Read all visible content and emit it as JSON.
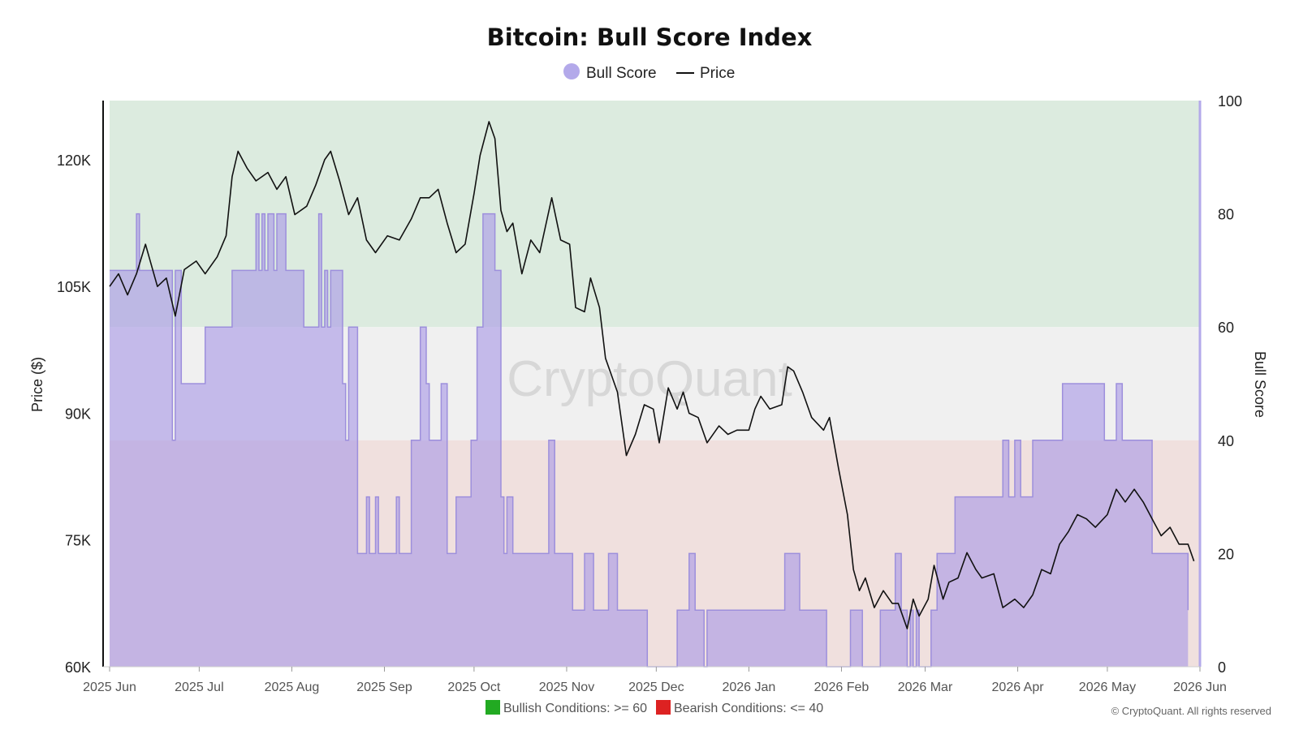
{
  "watermark": "CryptoQuant",
  "copyright": "© CryptoQuant. All rights reserved",
  "footnote": {
    "bullish": "Bullish Conditions: >= 60",
    "bearish": "Bearish Conditions: <= 40",
    "bullish_color": "#22aa22",
    "bearish_color": "#dd2222"
  },
  "chart_data": {
    "type": "line",
    "title": "Bitcoin: Bull Score Index",
    "legend": {
      "placement": "top-center",
      "items": [
        {
          "name": "Bull Score",
          "symbol": "circle"
        },
        {
          "name": "Price",
          "symbol": "line"
        }
      ]
    },
    "ylabel_left": "Price ($)",
    "ylabel_right": "Bull Score",
    "ylim_left": [
      60000,
      127000
    ],
    "ylim_right": [
      0,
      100
    ],
    "yticks_left": [
      60000,
      75000,
      90000,
      105000,
      120000
    ],
    "ytick_labels_left": [
      "60K",
      "75K",
      "90K",
      "105K",
      "120K"
    ],
    "yticks_right": [
      0,
      20,
      40,
      60,
      80,
      100
    ],
    "x_range": [
      "2025-06-01",
      "2026-06-01"
    ],
    "xticks": [
      "2025-06-01",
      "2025-07-01",
      "2025-08-01",
      "2025-09-01",
      "2025-10-01",
      "2025-11-01",
      "2025-12-01",
      "2026-01-01",
      "2026-02-01",
      "2026-03-01",
      "2026-04-01",
      "2026-05-01",
      "2026-06-01"
    ],
    "xtick_labels": [
      "2025 Jun",
      "2025 Jul",
      "2025 Aug",
      "2025 Sep",
      "2025 Oct",
      "2025 Nov",
      "2025 Dec",
      "2026 Jan",
      "2026 Feb",
      "2026 Mar",
      "2026 Apr",
      "2026 May",
      "2026 Jun"
    ],
    "zones": [
      {
        "name": "bullish",
        "from": 60,
        "to": 100,
        "color": "#dcebdf"
      },
      {
        "name": "neutral",
        "from": 40,
        "to": 60,
        "color": "#f0f0f0"
      },
      {
        "name": "bearish",
        "from": 0,
        "to": 40,
        "color": "#f0e0de"
      }
    ],
    "colors": {
      "bull_fill": "#a99ae6",
      "bull_line": "#9d8fdc",
      "price_line": "#111111",
      "right_axis": "#b3a9ea"
    },
    "grid": false,
    "series": [
      {
        "name": "Bull Score",
        "axis": "right",
        "kind": "step-area",
        "points": [
          [
            "2025-06-01",
            70
          ],
          [
            "2025-06-10",
            80
          ],
          [
            "2025-06-11",
            70
          ],
          [
            "2025-06-21",
            70
          ],
          [
            "2025-06-22",
            40
          ],
          [
            "2025-06-23",
            70
          ],
          [
            "2025-06-25",
            50
          ],
          [
            "2025-07-03",
            60
          ],
          [
            "2025-07-12",
            70
          ],
          [
            "2025-07-20",
            80
          ],
          [
            "2025-07-21",
            70
          ],
          [
            "2025-07-22",
            80
          ],
          [
            "2025-07-23",
            70
          ],
          [
            "2025-07-24",
            80
          ],
          [
            "2025-07-26",
            70
          ],
          [
            "2025-07-27",
            80
          ],
          [
            "2025-07-30",
            70
          ],
          [
            "2025-08-05",
            60
          ],
          [
            "2025-08-10",
            80
          ],
          [
            "2025-08-11",
            60
          ],
          [
            "2025-08-12",
            70
          ],
          [
            "2025-08-13",
            60
          ],
          [
            "2025-08-14",
            70
          ],
          [
            "2025-08-18",
            50
          ],
          [
            "2025-08-19",
            40
          ],
          [
            "2025-08-20",
            60
          ],
          [
            "2025-08-23",
            20
          ],
          [
            "2025-08-26",
            30
          ],
          [
            "2025-08-27",
            20
          ],
          [
            "2025-08-29",
            30
          ],
          [
            "2025-08-30",
            20
          ],
          [
            "2025-09-05",
            30
          ],
          [
            "2025-09-06",
            20
          ],
          [
            "2025-09-10",
            40
          ],
          [
            "2025-09-13",
            60
          ],
          [
            "2025-09-15",
            50
          ],
          [
            "2025-09-16",
            40
          ],
          [
            "2025-09-20",
            50
          ],
          [
            "2025-09-22",
            20
          ],
          [
            "2025-09-25",
            30
          ],
          [
            "2025-09-30",
            40
          ],
          [
            "2025-10-02",
            60
          ],
          [
            "2025-10-04",
            80
          ],
          [
            "2025-10-08",
            70
          ],
          [
            "2025-10-10",
            30
          ],
          [
            "2025-10-11",
            20
          ],
          [
            "2025-10-12",
            30
          ],
          [
            "2025-10-14",
            20
          ],
          [
            "2025-10-26",
            40
          ],
          [
            "2025-10-28",
            20
          ],
          [
            "2025-11-03",
            10
          ],
          [
            "2025-11-07",
            20
          ],
          [
            "2025-11-10",
            10
          ],
          [
            "2025-11-15",
            20
          ],
          [
            "2025-11-18",
            10
          ],
          [
            "2025-11-28",
            0
          ],
          [
            "2025-12-08",
            10
          ],
          [
            "2025-12-12",
            20
          ],
          [
            "2025-12-14",
            10
          ],
          [
            "2025-12-17",
            0
          ],
          [
            "2025-12-18",
            10
          ],
          [
            "2026-01-13",
            20
          ],
          [
            "2026-01-18",
            10
          ],
          [
            "2026-01-27",
            0
          ],
          [
            "2026-02-04",
            10
          ],
          [
            "2026-02-08",
            0
          ],
          [
            "2026-02-14",
            10
          ],
          [
            "2026-02-19",
            20
          ],
          [
            "2026-02-21",
            10
          ],
          [
            "2026-02-23",
            0
          ],
          [
            "2026-02-24",
            10
          ],
          [
            "2026-02-25",
            0
          ],
          [
            "2026-02-26",
            10
          ],
          [
            "2026-02-27",
            0
          ],
          [
            "2026-03-03",
            10
          ],
          [
            "2026-03-05",
            20
          ],
          [
            "2026-03-11",
            30
          ],
          [
            "2026-03-27",
            40
          ],
          [
            "2026-03-29",
            30
          ],
          [
            "2026-03-31",
            40
          ],
          [
            "2026-04-02",
            30
          ],
          [
            "2026-04-06",
            40
          ],
          [
            "2026-04-16",
            50
          ],
          [
            "2026-04-30",
            40
          ],
          [
            "2026-05-04",
            50
          ],
          [
            "2026-05-06",
            40
          ],
          [
            "2026-05-16",
            20
          ],
          [
            "2026-05-28",
            10
          ],
          [
            "2026-05-28",
            10
          ]
        ]
      },
      {
        "name": "Price",
        "axis": "left",
        "kind": "line",
        "points": [
          [
            "2025-06-01",
            105000
          ],
          [
            "2025-06-04",
            106500
          ],
          [
            "2025-06-07",
            104000
          ],
          [
            "2025-06-10",
            106500
          ],
          [
            "2025-06-13",
            110000
          ],
          [
            "2025-06-17",
            105000
          ],
          [
            "2025-06-20",
            106000
          ],
          [
            "2025-06-23",
            101500
          ],
          [
            "2025-06-26",
            107000
          ],
          [
            "2025-06-30",
            108000
          ],
          [
            "2025-07-03",
            106500
          ],
          [
            "2025-07-07",
            108500
          ],
          [
            "2025-07-10",
            111000
          ],
          [
            "2025-07-12",
            118000
          ],
          [
            "2025-07-14",
            121000
          ],
          [
            "2025-07-17",
            119000
          ],
          [
            "2025-07-20",
            117500
          ],
          [
            "2025-07-24",
            118500
          ],
          [
            "2025-07-27",
            116500
          ],
          [
            "2025-07-30",
            118000
          ],
          [
            "2025-08-02",
            113500
          ],
          [
            "2025-08-06",
            114500
          ],
          [
            "2025-08-09",
            117000
          ],
          [
            "2025-08-12",
            120000
          ],
          [
            "2025-08-14",
            121000
          ],
          [
            "2025-08-17",
            117500
          ],
          [
            "2025-08-20",
            113500
          ],
          [
            "2025-08-23",
            115500
          ],
          [
            "2025-08-26",
            110500
          ],
          [
            "2025-08-29",
            109000
          ],
          [
            "2025-09-02",
            111000
          ],
          [
            "2025-09-06",
            110500
          ],
          [
            "2025-09-10",
            113000
          ],
          [
            "2025-09-13",
            115500
          ],
          [
            "2025-09-16",
            115500
          ],
          [
            "2025-09-19",
            116500
          ],
          [
            "2025-09-22",
            112500
          ],
          [
            "2025-09-25",
            109000
          ],
          [
            "2025-09-28",
            110000
          ],
          [
            "2025-10-01",
            116000
          ],
          [
            "2025-10-03",
            120500
          ],
          [
            "2025-10-06",
            124500
          ],
          [
            "2025-10-08",
            122500
          ],
          [
            "2025-10-10",
            114000
          ],
          [
            "2025-10-12",
            111500
          ],
          [
            "2025-10-14",
            112500
          ],
          [
            "2025-10-17",
            106500
          ],
          [
            "2025-10-20",
            110500
          ],
          [
            "2025-10-23",
            109000
          ],
          [
            "2025-10-27",
            115500
          ],
          [
            "2025-10-30",
            110500
          ],
          [
            "2025-11-02",
            110000
          ],
          [
            "2025-11-04",
            102500
          ],
          [
            "2025-11-07",
            102000
          ],
          [
            "2025-11-09",
            106000
          ],
          [
            "2025-11-12",
            102500
          ],
          [
            "2025-11-14",
            96500
          ],
          [
            "2025-11-18",
            92500
          ],
          [
            "2025-11-21",
            85000
          ],
          [
            "2025-11-24",
            87500
          ],
          [
            "2025-11-27",
            91000
          ],
          [
            "2025-11-30",
            90500
          ],
          [
            "2025-12-02",
            86500
          ],
          [
            "2025-12-05",
            93000
          ],
          [
            "2025-12-08",
            90500
          ],
          [
            "2025-12-10",
            92500
          ],
          [
            "2025-12-12",
            90000
          ],
          [
            "2025-12-15",
            89500
          ],
          [
            "2025-12-18",
            86500
          ],
          [
            "2025-12-22",
            88500
          ],
          [
            "2025-12-25",
            87500
          ],
          [
            "2025-12-28",
            88000
          ],
          [
            "2026-01-01",
            88000
          ],
          [
            "2026-01-03",
            90500
          ],
          [
            "2026-01-05",
            92000
          ],
          [
            "2026-01-08",
            90500
          ],
          [
            "2026-01-12",
            91000
          ],
          [
            "2026-01-14",
            95500
          ],
          [
            "2026-01-16",
            95000
          ],
          [
            "2026-01-19",
            92500
          ],
          [
            "2026-01-22",
            89500
          ],
          [
            "2026-01-26",
            88000
          ],
          [
            "2026-01-28",
            89500
          ],
          [
            "2026-01-31",
            83500
          ],
          [
            "2026-02-03",
            78000
          ],
          [
            "2026-02-05",
            71500
          ],
          [
            "2026-02-07",
            69000
          ],
          [
            "2026-02-09",
            70500
          ],
          [
            "2026-02-12",
            67000
          ],
          [
            "2026-02-15",
            69000
          ],
          [
            "2026-02-18",
            67500
          ],
          [
            "2026-02-20",
            67500
          ],
          [
            "2026-02-23",
            64500
          ],
          [
            "2026-02-25",
            68000
          ],
          [
            "2026-02-27",
            66000
          ],
          [
            "2026-03-02",
            68000
          ],
          [
            "2026-03-04",
            72000
          ],
          [
            "2026-03-07",
            68000
          ],
          [
            "2026-03-09",
            70000
          ],
          [
            "2026-03-12",
            70500
          ],
          [
            "2026-03-15",
            73500
          ],
          [
            "2026-03-18",
            71500
          ],
          [
            "2026-03-20",
            70500
          ],
          [
            "2026-03-24",
            71000
          ],
          [
            "2026-03-27",
            67000
          ],
          [
            "2026-03-31",
            68000
          ],
          [
            "2026-04-03",
            67000
          ],
          [
            "2026-04-06",
            68500
          ],
          [
            "2026-04-09",
            71500
          ],
          [
            "2026-04-12",
            71000
          ],
          [
            "2026-04-15",
            74500
          ],
          [
            "2026-04-18",
            76000
          ],
          [
            "2026-04-21",
            78000
          ],
          [
            "2026-04-24",
            77500
          ],
          [
            "2026-04-27",
            76500
          ],
          [
            "2026-05-01",
            78000
          ],
          [
            "2026-05-04",
            81000
          ],
          [
            "2026-05-07",
            79500
          ],
          [
            "2026-05-10",
            81000
          ],
          [
            "2026-05-13",
            79500
          ],
          [
            "2026-05-16",
            77500
          ],
          [
            "2026-05-19",
            75500
          ],
          [
            "2026-05-22",
            76500
          ],
          [
            "2026-05-25",
            74500
          ],
          [
            "2026-05-28",
            74500
          ],
          [
            "2026-05-30",
            72500
          ]
        ]
      }
    ]
  }
}
